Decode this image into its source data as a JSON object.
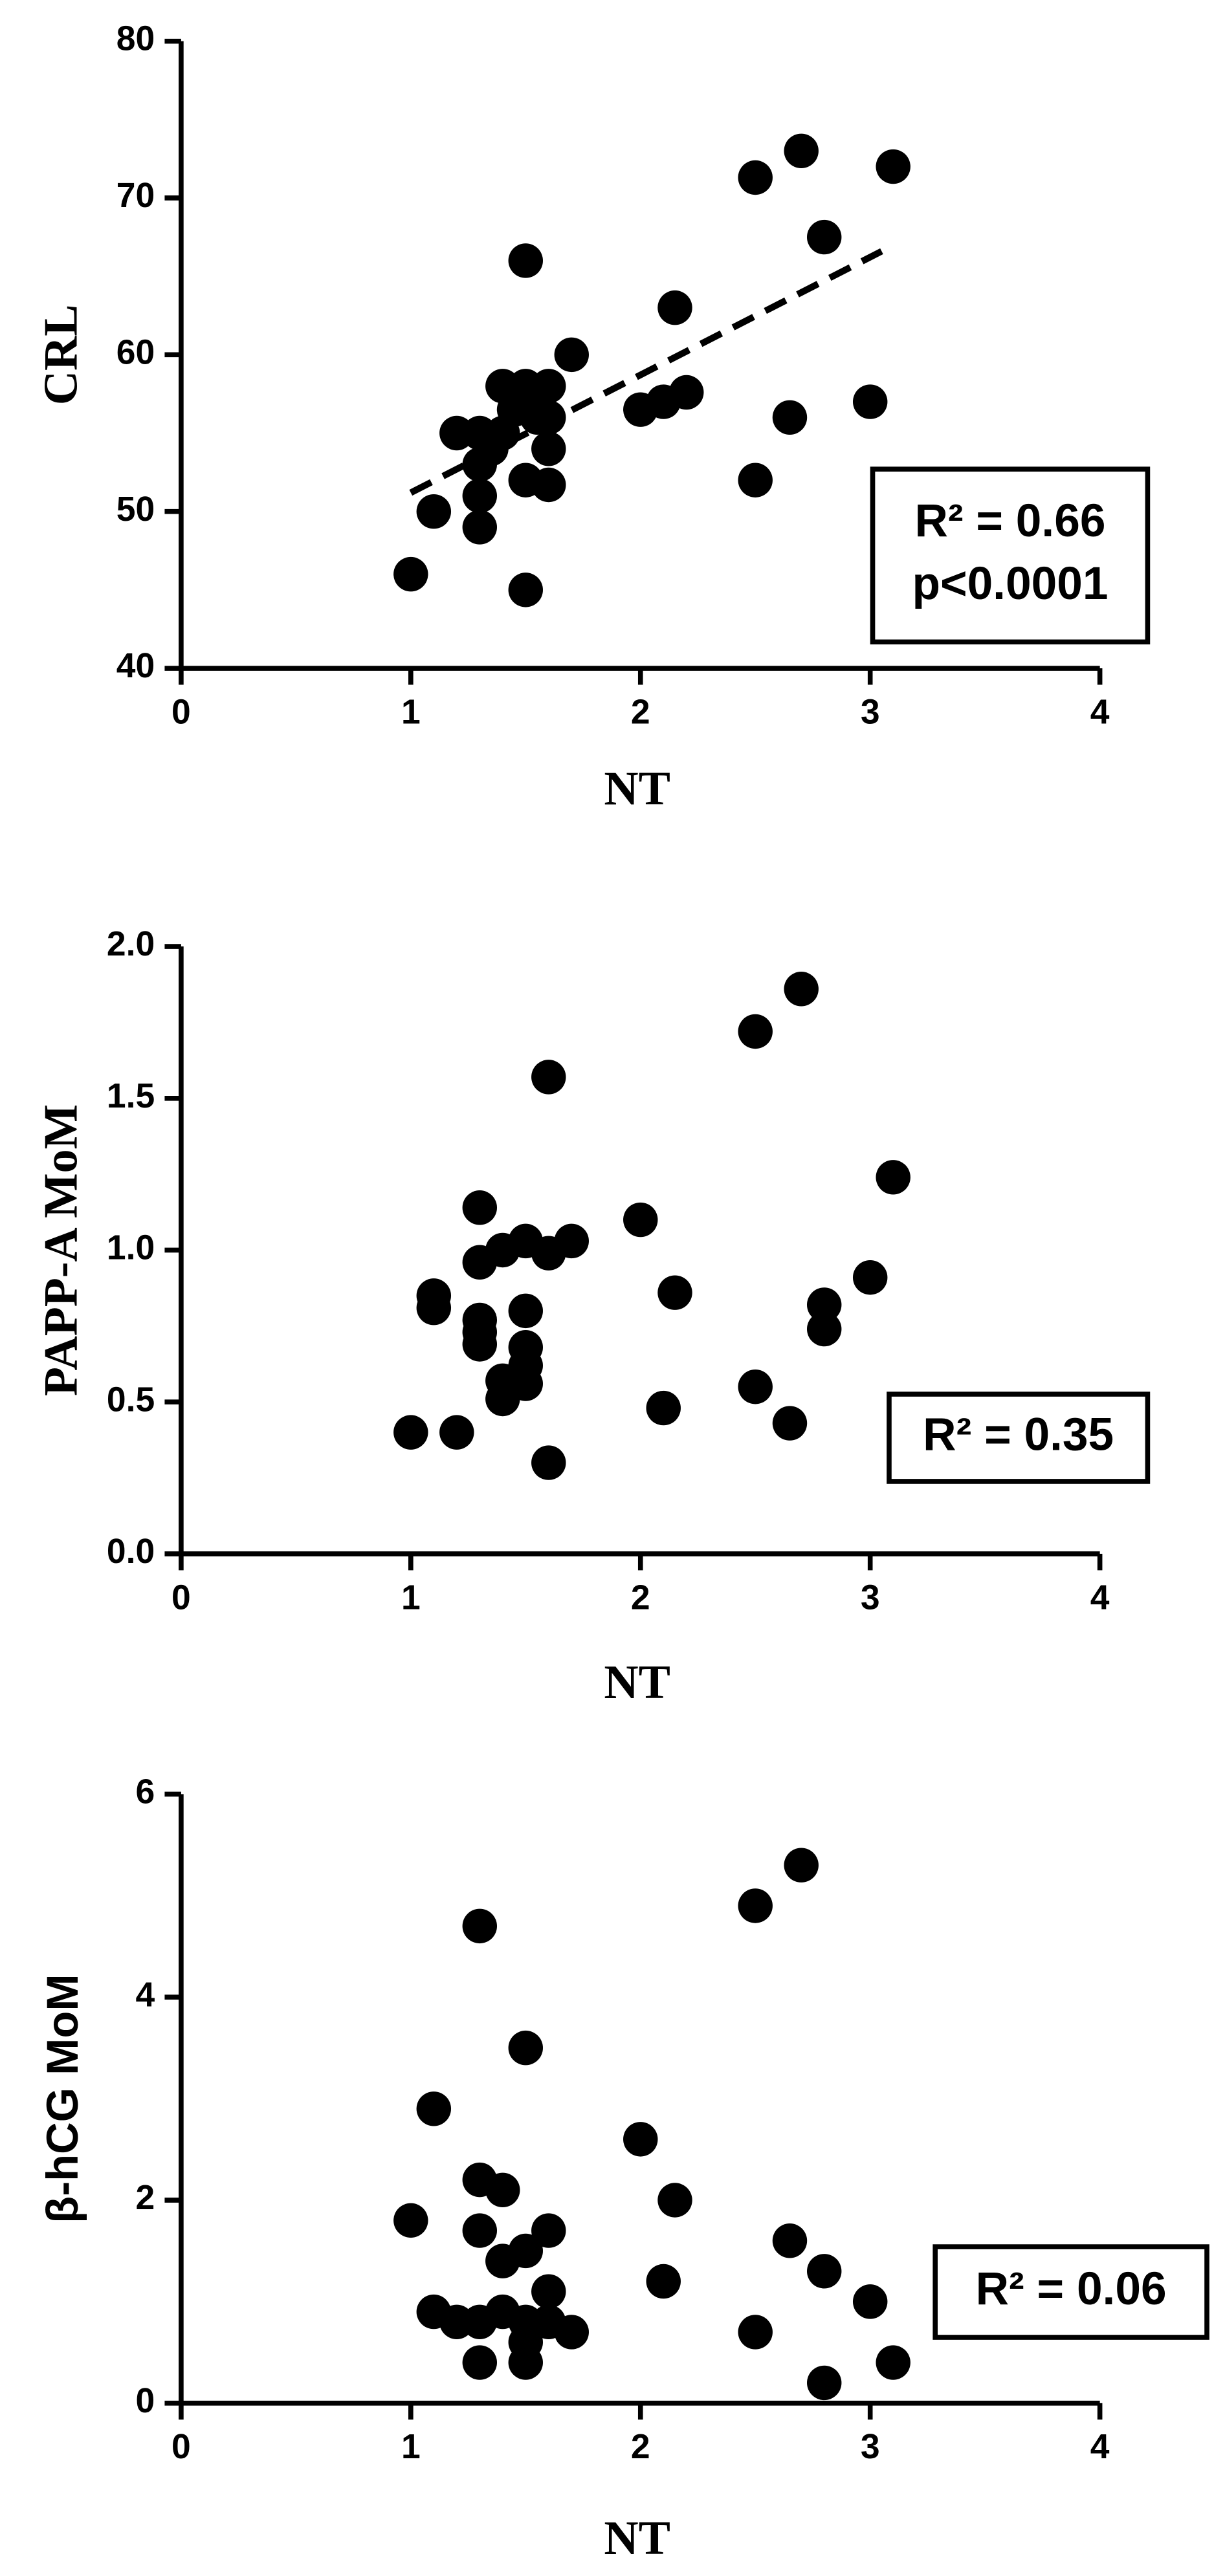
{
  "chart_data": [
    {
      "type": "scatter",
      "xlabel": "NT",
      "ylabel": "CRL",
      "color": "#000000",
      "x": [
        1.0,
        1.1,
        1.2,
        1.3,
        1.3,
        1.3,
        1.3,
        1.35,
        1.4,
        1.4,
        1.45,
        1.5,
        1.5,
        1.5,
        1.5,
        1.5,
        1.55,
        1.6,
        1.6,
        1.6,
        1.6,
        1.7,
        2.0,
        2.1,
        2.15,
        2.2,
        2.5,
        2.5,
        2.65,
        2.7,
        2.8,
        3.0,
        3.1
      ],
      "y": [
        46,
        50,
        55,
        55,
        51,
        49,
        53,
        54,
        58,
        55,
        56.5,
        57,
        66,
        45,
        52,
        58,
        56,
        58,
        54,
        51.7,
        56,
        60,
        56.5,
        57,
        63,
        57.6,
        71.3,
        52,
        56,
        73,
        67.5,
        57,
        72
      ],
      "xlim": [
        0,
        4
      ],
      "xticks": [
        0,
        1,
        2,
        3,
        4
      ],
      "ylim": [
        40,
        80
      ],
      "yticks": [
        40,
        50,
        60,
        70,
        80
      ],
      "trendline": {
        "x": [
          1.0,
          3.05
        ],
        "y": [
          51.2,
          66.6
        ]
      },
      "annotation": [
        "R² = 0.66",
        "p<0.0001"
      ]
    },
    {
      "type": "scatter",
      "xlabel": "NT",
      "ylabel": "PAPP-A MoM",
      "color": "#000000",
      "x": [
        1.0,
        1.1,
        1.1,
        1.2,
        1.3,
        1.3,
        1.3,
        1.3,
        1.3,
        1.4,
        1.4,
        1.4,
        1.5,
        1.5,
        1.5,
        1.5,
        1.5,
        1.6,
        1.6,
        1.6,
        1.7,
        2.0,
        2.1,
        2.15,
        2.5,
        2.5,
        2.65,
        2.7,
        2.8,
        2.8,
        3.0,
        3.1
      ],
      "y": [
        0.4,
        0.85,
        0.81,
        0.4,
        1.14,
        0.96,
        0.77,
        0.73,
        0.69,
        1.0,
        0.57,
        0.51,
        1.03,
        0.8,
        0.68,
        0.62,
        0.56,
        1.57,
        0.99,
        0.3,
        1.03,
        1.1,
        0.48,
        0.86,
        1.72,
        0.55,
        0.43,
        1.86,
        0.82,
        0.74,
        0.91,
        1.24
      ],
      "xlim": [
        0,
        4
      ],
      "xticks": [
        0,
        1,
        2,
        3,
        4
      ],
      "ylim": [
        0,
        2
      ],
      "yticks": [
        {
          "value": 0,
          "label": "0.0"
        },
        {
          "value": 0.5,
          "label": "0.5"
        },
        {
          "value": 1,
          "label": "1.0"
        },
        {
          "value": 1.5,
          "label": "1.5"
        },
        {
          "value": 2,
          "label": "2.0"
        }
      ],
      "annotation": [
        "R² = 0.35"
      ]
    },
    {
      "type": "scatter",
      "xlabel": "NT",
      "ylabel": "β-hCG MoM",
      "color": "#000000",
      "x": [
        1.0,
        1.1,
        1.1,
        1.2,
        1.3,
        1.3,
        1.3,
        1.3,
        1.3,
        1.4,
        1.4,
        1.4,
        1.5,
        1.5,
        1.5,
        1.5,
        1.5,
        1.6,
        1.6,
        1.6,
        1.7,
        2.0,
        2.1,
        2.15,
        2.5,
        2.5,
        2.65,
        2.7,
        2.8,
        2.8,
        3.0,
        3.1
      ],
      "y": [
        1.8,
        2.9,
        0.9,
        0.8,
        4.7,
        2.2,
        1.7,
        0.8,
        0.4,
        2.1,
        1.4,
        0.9,
        3.5,
        1.5,
        0.8,
        0.6,
        0.4,
        1.7,
        1.1,
        0.8,
        0.7,
        2.6,
        1.2,
        2.0,
        4.9,
        0.7,
        1.6,
        5.3,
        1.3,
        0.2,
        1.0,
        0.4
      ],
      "xlim": [
        0,
        4
      ],
      "xticks": [
        0,
        1,
        2,
        3,
        4
      ],
      "ylim": [
        0,
        6
      ],
      "yticks": [
        0,
        2,
        4,
        6
      ],
      "annotation": [
        "R² = 0.06"
      ]
    }
  ]
}
